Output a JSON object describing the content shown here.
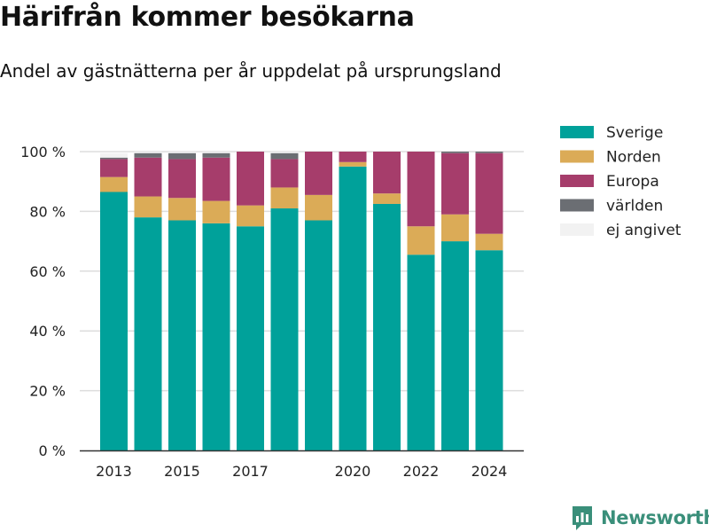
{
  "header": {
    "title": "Härifrån kommer besökarna",
    "subtitle": "Andel av gästnätterna per år uppdelat på ursprungsland"
  },
  "brand": {
    "name": "Newsworthy",
    "color": "#3a8f7a",
    "icon": "newsworthy-logo-icon"
  },
  "colors": {
    "sverige": "#00a19a",
    "norden": "#dbab57",
    "europa": "#a63d6b",
    "varlden": "#6b6e73",
    "ej_angivet": "#f2f2f2",
    "grid": "#dddddd",
    "axis": "#333333"
  },
  "chart_data": {
    "type": "bar",
    "stacked": true,
    "title": "Härifrån kommer besökarna",
    "subtitle": "Andel av gästnätterna per år uppdelat på ursprungsland",
    "x": [
      2013,
      2014,
      2015,
      2016,
      2017,
      2018,
      2019,
      2020,
      2021,
      2022,
      2023,
      2024
    ],
    "x_ticks": [
      "2013",
      "2015",
      "2017",
      "2020",
      "2022",
      "2024"
    ],
    "ylim": [
      0,
      100
    ],
    "y_ticks": [
      "0 %",
      "20 %",
      "40 %",
      "60 %",
      "80 %",
      "100 %"
    ],
    "grid": true,
    "legend_position": "right",
    "series": [
      {
        "name": "Sverige",
        "color": "#00a19a",
        "values": [
          86.5,
          78,
          77,
          76,
          75,
          81,
          77,
          95,
          82.5,
          65.5,
          70,
          67
        ]
      },
      {
        "name": "Norden",
        "color": "#dbab57",
        "values": [
          5,
          7,
          7.5,
          7.5,
          7,
          7,
          8.5,
          1.5,
          3.5,
          9.5,
          9,
          5.5
        ]
      },
      {
        "name": "Europa",
        "color": "#a63d6b",
        "values": [
          6,
          13,
          13,
          14.5,
          18,
          9.5,
          14.5,
          3.5,
          14,
          25,
          20.5,
          27
        ]
      },
      {
        "name": "världen",
        "color": "#6b6e73",
        "values": [
          0.5,
          1.5,
          2,
          1.5,
          0,
          2,
          0,
          0,
          0,
          0,
          0.5,
          0.5
        ]
      },
      {
        "name": "ej angivet",
        "color": "#f2f2f2",
        "values": [
          1.5,
          0.5,
          0.5,
          0.5,
          0,
          0.5,
          0,
          0,
          0,
          0,
          0,
          0
        ]
      }
    ]
  }
}
